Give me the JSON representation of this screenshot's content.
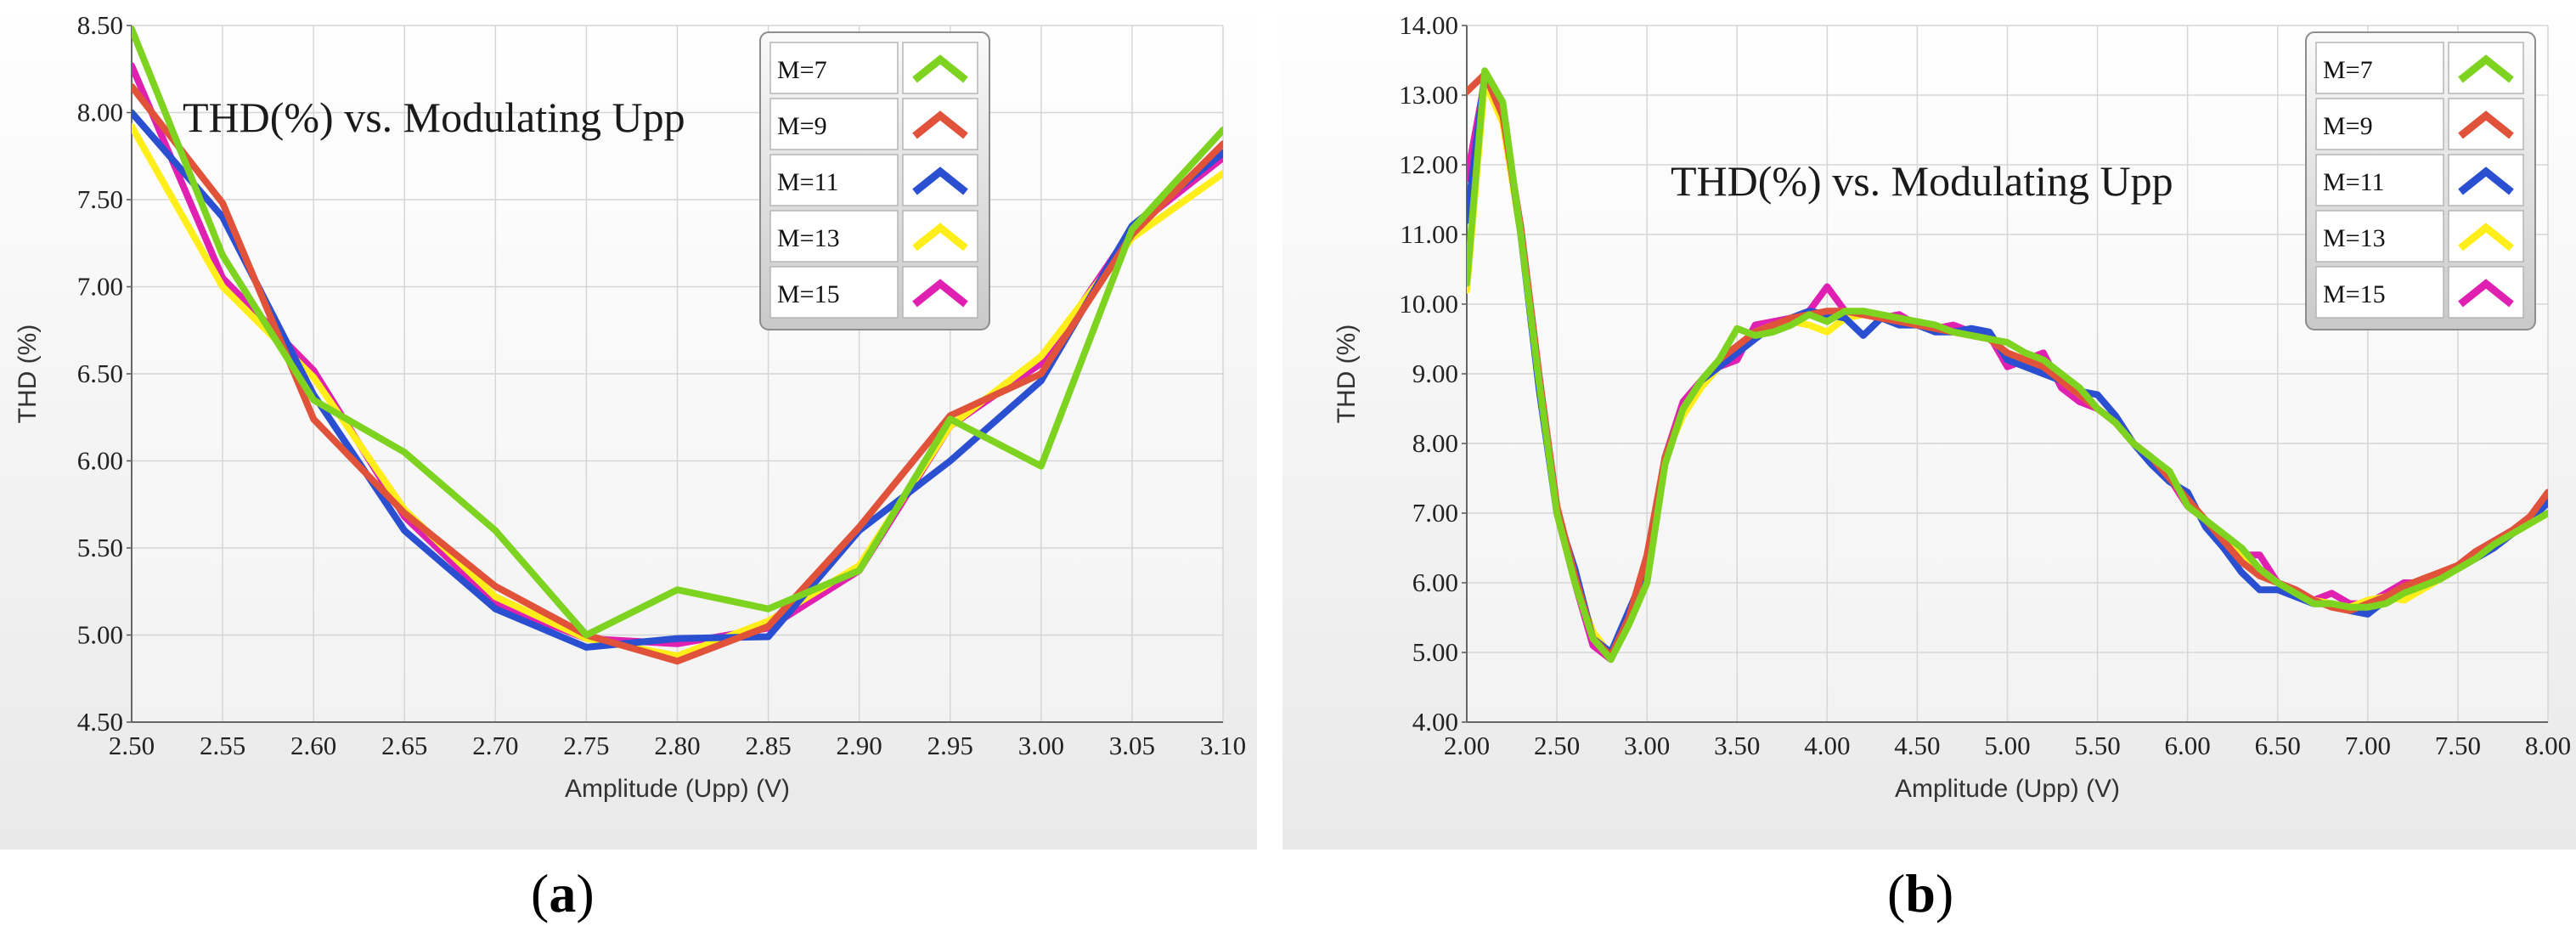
{
  "captions": {
    "a": "a",
    "b": "b"
  },
  "legend_swatch_colors": {
    "M=7": "#7ed321",
    "M=9": "#e0533a",
    "M=11": "#2a4fd1",
    "M=13": "#ffee1a",
    "M=15": "#e020b0"
  },
  "chart_data": [
    {
      "type": "line",
      "title": "THD(%) vs. Modulating Upp",
      "xlabel": "Amplitude (Upp) (V)",
      "ylabel": "THD (%)",
      "xlim": [
        2.5,
        3.1
      ],
      "ylim": [
        4.5,
        8.5
      ],
      "x_ticks": [
        "2.50",
        "2.55",
        "2.60",
        "2.65",
        "2.70",
        "2.75",
        "2.80",
        "2.85",
        "2.90",
        "2.95",
        "3.00",
        "3.05",
        "3.10"
      ],
      "y_ticks": [
        "4.50",
        "5.00",
        "5.50",
        "6.00",
        "6.50",
        "7.00",
        "7.50",
        "8.00",
        "8.50"
      ],
      "grid": true,
      "legend_position": "top-right",
      "x": [
        2.5,
        2.55,
        2.6,
        2.65,
        2.7,
        2.75,
        2.8,
        2.85,
        2.9,
        2.95,
        3.0,
        3.05,
        3.1
      ],
      "series": [
        {
          "name": "M=7",
          "color": "#7ed321",
          "values": [
            8.48,
            7.18,
            6.35,
            6.05,
            5.6,
            5.0,
            5.26,
            5.15,
            5.37,
            6.24,
            5.97,
            7.33,
            7.9
          ]
        },
        {
          "name": "M=9",
          "color": "#e0533a",
          "values": [
            8.15,
            7.48,
            6.24,
            5.7,
            5.28,
            5.0,
            4.85,
            5.05,
            5.62,
            6.26,
            6.5,
            7.3,
            7.82
          ]
        },
        {
          "name": "M=11",
          "color": "#2a4fd1",
          "values": [
            8.0,
            7.4,
            6.38,
            5.6,
            5.15,
            4.93,
            4.98,
            4.99,
            5.6,
            6.0,
            6.46,
            7.35,
            7.77
          ]
        },
        {
          "name": "M=13",
          "color": "#ffee1a",
          "values": [
            7.92,
            7.0,
            6.48,
            5.72,
            5.22,
            4.98,
            4.88,
            5.08,
            5.4,
            6.2,
            6.6,
            7.28,
            7.65
          ]
        },
        {
          "name": "M=15",
          "color": "#e020b0",
          "values": [
            8.27,
            7.05,
            6.52,
            5.68,
            5.18,
            4.98,
            4.95,
            5.04,
            5.37,
            6.2,
            6.56,
            7.33,
            7.74
          ]
        }
      ]
    },
    {
      "type": "line",
      "title": "THD(%) vs. Modulating Upp",
      "xlabel": "Amplitude (Upp) (V)",
      "ylabel": "THD (%)",
      "xlim": [
        2.0,
        8.0
      ],
      "ylim": [
        4.0,
        14.0
      ],
      "x_ticks": [
        "2.00",
        "2.50",
        "3.00",
        "3.50",
        "4.00",
        "4.50",
        "5.00",
        "5.50",
        "6.00",
        "6.50",
        "7.00",
        "7.50",
        "8.00"
      ],
      "y_ticks": [
        "4.00",
        "5.00",
        "6.00",
        "7.00",
        "8.00",
        "9.00",
        "10.00",
        "11.00",
        "12.00",
        "13.00",
        "14.00"
      ],
      "grid": true,
      "legend_position": "top-right",
      "x": [
        2.0,
        2.1,
        2.2,
        2.3,
        2.4,
        2.5,
        2.6,
        2.7,
        2.8,
        2.9,
        3.0,
        3.1,
        3.2,
        3.3,
        3.4,
        3.5,
        3.6,
        3.7,
        3.8,
        3.9,
        4.0,
        4.1,
        4.2,
        4.3,
        4.4,
        4.5,
        4.6,
        4.7,
        4.8,
        4.9,
        5.0,
        5.1,
        5.2,
        5.3,
        5.4,
        5.5,
        5.6,
        5.7,
        5.8,
        5.9,
        6.0,
        6.1,
        6.2,
        6.3,
        6.4,
        6.5,
        6.6,
        6.7,
        6.8,
        6.9,
        7.0,
        7.1,
        7.2,
        7.3,
        7.4,
        7.5,
        7.6,
        7.7,
        7.8,
        7.9,
        8.0
      ],
      "series": [
        {
          "name": "M=7",
          "color": "#7ed321",
          "values": [
            10.3,
            13.35,
            12.9,
            11.0,
            8.9,
            7.0,
            6.0,
            5.2,
            4.9,
            5.4,
            6.0,
            7.7,
            8.5,
            8.9,
            9.2,
            9.65,
            9.55,
            9.6,
            9.7,
            9.85,
            9.75,
            9.9,
            9.9,
            9.85,
            9.8,
            9.75,
            9.7,
            9.6,
            9.55,
            9.5,
            9.45,
            9.3,
            9.2,
            9.0,
            8.8,
            8.5,
            8.3,
            8.0,
            7.8,
            7.6,
            7.1,
            6.9,
            6.7,
            6.5,
            6.2,
            6.0,
            5.85,
            5.7,
            5.7,
            5.65,
            5.65,
            5.7,
            5.85,
            5.95,
            6.05,
            6.2,
            6.35,
            6.55,
            6.7,
            6.85,
            7.0
          ]
        },
        {
          "name": "M=9",
          "color": "#e0533a",
          "values": [
            13.05,
            13.3,
            12.7,
            11.1,
            9.0,
            7.1,
            6.1,
            5.2,
            4.95,
            5.5,
            6.4,
            7.8,
            8.5,
            8.9,
            9.2,
            9.4,
            9.6,
            9.7,
            9.8,
            9.85,
            9.9,
            9.9,
            9.85,
            9.8,
            9.75,
            9.7,
            9.65,
            9.6,
            9.55,
            9.5,
            9.3,
            9.2,
            9.1,
            8.9,
            8.7,
            8.5,
            8.3,
            8.0,
            7.8,
            7.5,
            7.2,
            6.9,
            6.6,
            6.3,
            6.1,
            6.0,
            5.9,
            5.75,
            5.65,
            5.6,
            5.7,
            5.8,
            5.95,
            6.05,
            6.15,
            6.25,
            6.45,
            6.6,
            6.75,
            6.95,
            7.3
          ]
        },
        {
          "name": "M=11",
          "color": "#2a4fd1",
          "values": [
            11.2,
            13.3,
            12.8,
            11.0,
            8.8,
            7.0,
            6.2,
            5.2,
            5.0,
            5.6,
            6.2,
            7.8,
            8.5,
            8.9,
            9.1,
            9.3,
            9.5,
            9.7,
            9.8,
            9.9,
            9.85,
            9.8,
            9.55,
            9.8,
            9.7,
            9.7,
            9.6,
            9.6,
            9.65,
            9.6,
            9.2,
            9.1,
            9.0,
            8.9,
            8.75,
            8.7,
            8.4,
            8.0,
            7.7,
            7.45,
            7.3,
            6.8,
            6.5,
            6.15,
            5.9,
            5.9,
            5.8,
            5.7,
            5.7,
            5.6,
            5.55,
            5.75,
            5.9,
            6.0,
            6.1,
            6.2,
            6.35,
            6.5,
            6.7,
            6.9,
            7.15
          ]
        },
        {
          "name": "M=13",
          "color": "#ffee1a",
          "values": [
            10.2,
            13.2,
            12.6,
            11.0,
            8.9,
            7.1,
            6.0,
            5.3,
            4.95,
            5.4,
            6.1,
            7.8,
            8.4,
            8.8,
            9.1,
            9.4,
            9.6,
            9.7,
            9.75,
            9.7,
            9.6,
            9.8,
            9.85,
            9.8,
            9.75,
            9.7,
            9.65,
            9.6,
            9.55,
            9.5,
            9.3,
            9.2,
            9.1,
            8.9,
            8.7,
            8.5,
            8.3,
            8.0,
            7.8,
            7.5,
            7.2,
            6.9,
            6.6,
            6.4,
            6.2,
            6.0,
            5.85,
            5.75,
            5.7,
            5.65,
            5.75,
            5.8,
            5.75,
            5.9,
            6.05,
            6.2,
            6.35,
            6.5,
            6.7,
            6.85,
            7.0
          ]
        },
        {
          "name": "M=15",
          "color": "#e020b0",
          "values": [
            11.8,
            13.2,
            12.7,
            11.1,
            9.0,
            7.0,
            6.0,
            5.1,
            4.9,
            5.5,
            6.3,
            7.8,
            8.6,
            8.9,
            9.1,
            9.2,
            9.7,
            9.75,
            9.8,
            9.9,
            10.25,
            9.9,
            9.85,
            9.8,
            9.85,
            9.7,
            9.65,
            9.7,
            9.6,
            9.55,
            9.1,
            9.2,
            9.3,
            8.8,
            8.6,
            8.5,
            8.3,
            8.0,
            7.8,
            7.5,
            7.1,
            6.9,
            6.6,
            6.4,
            6.4,
            6.0,
            5.9,
            5.75,
            5.85,
            5.7,
            5.7,
            5.85,
            6.0,
            6.0,
            6.1,
            6.25,
            6.45,
            6.6,
            6.75,
            6.9,
            7.2
          ]
        }
      ]
    }
  ]
}
